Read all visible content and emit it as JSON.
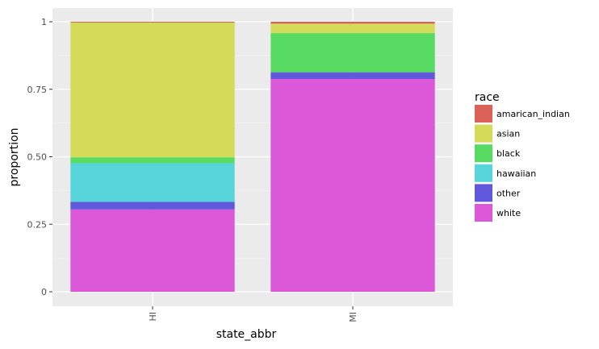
{
  "chart_data": {
    "type": "bar",
    "stacked": true,
    "categories": [
      "HI",
      "MI"
    ],
    "xlabel": "state_abbr",
    "ylabel": "proportion",
    "ylim": [
      0,
      1
    ],
    "yticks": [
      0,
      0.25,
      0.5,
      0.75,
      1
    ],
    "ytick_labels": [
      "0",
      "0.25",
      "0.50",
      "0.75",
      "1"
    ],
    "grid": true,
    "legend": {
      "title": "race",
      "placement": "right"
    },
    "series": [
      {
        "name": "white",
        "color": "#DB58D8",
        "values": [
          0.305,
          0.788
        ]
      },
      {
        "name": "other",
        "color": "#6258DB",
        "values": [
          0.028,
          0.025
        ]
      },
      {
        "name": "hawaiian",
        "color": "#58D4DB",
        "values": [
          0.143,
          0.0
        ]
      },
      {
        "name": "black",
        "color": "#58DB62",
        "values": [
          0.022,
          0.145
        ]
      },
      {
        "name": "asian",
        "color": "#D4DB58",
        "values": [
          0.499,
          0.035
        ]
      },
      {
        "name": "amarican_indian",
        "color": "#DB6258",
        "values": [
          0.003,
          0.007
        ]
      }
    ],
    "legend_order": [
      "amarican_indian",
      "asian",
      "black",
      "hawaiian",
      "other",
      "white"
    ]
  }
}
